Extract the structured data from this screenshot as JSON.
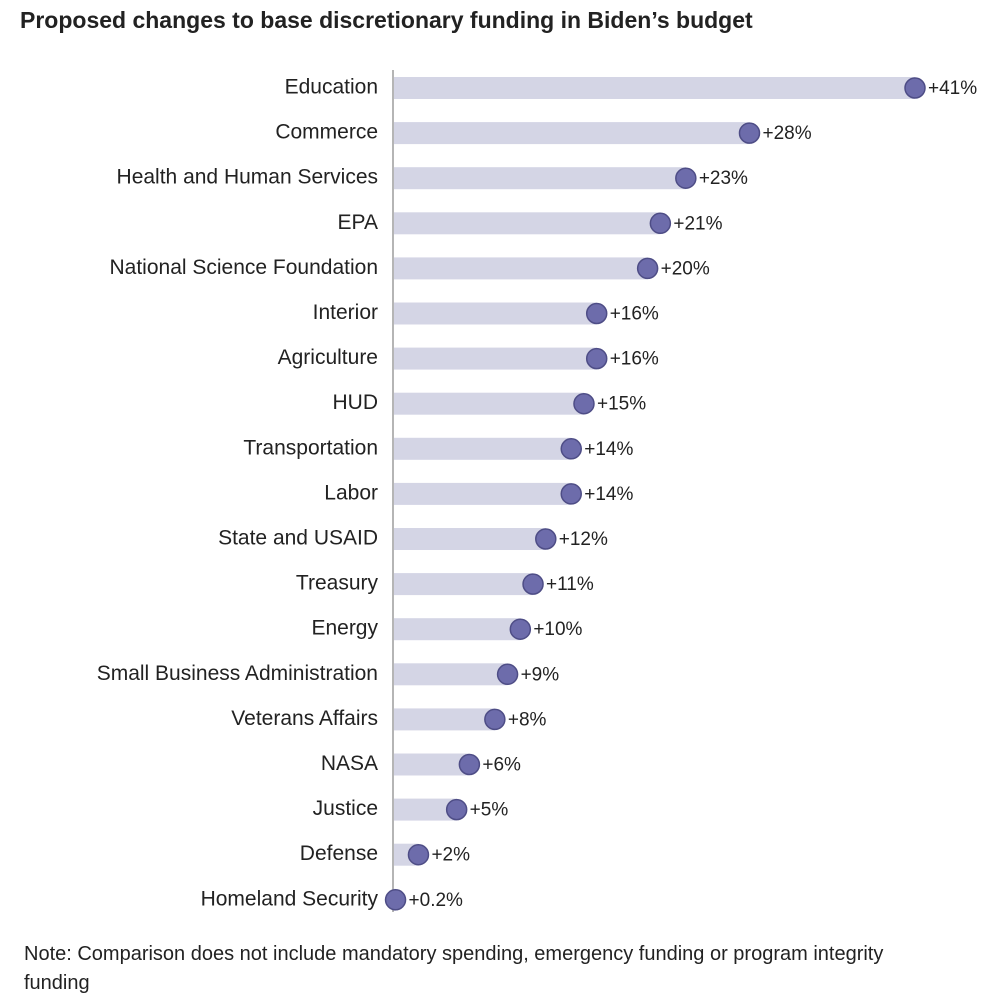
{
  "chart_data": {
    "type": "lollipop",
    "orientation": "horizontal",
    "title": "Proposed changes to base discretionary funding in Biden’s budget",
    "categories": [
      "Education",
      "Commerce",
      "Health and Human Services",
      "EPA",
      "National Science Foundation",
      "Interior",
      "Agriculture",
      "HUD",
      "Transportation",
      "Labor",
      "State and USAID",
      "Treasury",
      "Energy",
      "Small Business Administration",
      "Veterans Affairs",
      "NASA",
      "Justice",
      "Defense",
      "Homeland Security"
    ],
    "values": [
      41,
      28,
      23,
      21,
      20,
      16,
      16,
      15,
      14,
      14,
      12,
      11,
      10,
      9,
      8,
      6,
      5,
      2,
      0.2
    ],
    "value_labels": [
      "+41%",
      "+28%",
      "+23%",
      "+21%",
      "+20%",
      "+16%",
      "+16%",
      "+15%",
      "+14%",
      "+14%",
      "+12%",
      "+11%",
      "+10%",
      "+9%",
      "+8%",
      "+6%",
      "+5%",
      "+2%",
      "+0.2%"
    ],
    "color": "#6d6cab",
    "track_color": "#d4d5e5",
    "note": "Note: Comparison does not include mandatory spending, emergency funding or program integrity funding"
  }
}
